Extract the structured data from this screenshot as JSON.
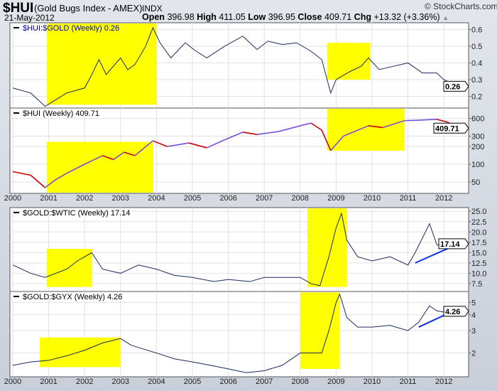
{
  "header": {
    "symbol": "$HUI",
    "name": "(Gold Bugs Index - AMEX)",
    "exchange": "INDX",
    "date": "21-May-2012",
    "brand": "© StockCharts.com",
    "open_label": "Open",
    "open": "396.98",
    "high_label": "High",
    "high": "411.05",
    "low_label": "Low",
    "low": "396.95",
    "close_label": "Close",
    "close": "409.71",
    "chg_label": "Chg",
    "chg": "+13.32 (+3.36%)"
  },
  "colors": {
    "highlight": "#ffff00",
    "line": "#1a2a5a",
    "up": "#0000ff",
    "down": "#cc0000",
    "trend": "#1030e0"
  },
  "chart_data": {
    "type": "line",
    "x_ticks": [
      "2000",
      "2001",
      "2002",
      "2003",
      "2004",
      "2005",
      "2006",
      "2007",
      "2008",
      "2009",
      "2010",
      "2011",
      "2012"
    ],
    "panels": [
      {
        "title": "$HUI:$GOLD (Weekly) 0.26",
        "last": "0.26",
        "scale": "linear",
        "ylim": [
          0.13,
          0.64
        ],
        "ticks": [
          "0.6",
          "0.5",
          "0.4",
          "0.3",
          "0.2"
        ],
        "tick_values": [
          0.6,
          0.5,
          0.4,
          0.3,
          0.2
        ],
        "highlights": [
          [
            2000.95,
            2004.0,
            0.15,
            0.64
          ],
          [
            2008.75,
            2009.95,
            0.3,
            0.52
          ]
        ],
        "points": [
          [
            2000,
            0.25
          ],
          [
            2000.5,
            0.22
          ],
          [
            2000.9,
            0.14
          ],
          [
            2001.2,
            0.18
          ],
          [
            2001.5,
            0.22
          ],
          [
            2002.0,
            0.25
          ],
          [
            2002.2,
            0.33
          ],
          [
            2002.4,
            0.42
          ],
          [
            2002.6,
            0.33
          ],
          [
            2002.8,
            0.38
          ],
          [
            2003.0,
            0.43
          ],
          [
            2003.2,
            0.36
          ],
          [
            2003.4,
            0.39
          ],
          [
            2003.7,
            0.5
          ],
          [
            2003.9,
            0.61
          ],
          [
            2004.1,
            0.52
          ],
          [
            2004.4,
            0.43
          ],
          [
            2004.8,
            0.52
          ],
          [
            2005.1,
            0.47
          ],
          [
            2005.4,
            0.43
          ],
          [
            2005.9,
            0.5
          ],
          [
            2006.4,
            0.56
          ],
          [
            2006.8,
            0.48
          ],
          [
            2007.1,
            0.53
          ],
          [
            2007.5,
            0.51
          ],
          [
            2007.9,
            0.52
          ],
          [
            2008.3,
            0.47
          ],
          [
            2008.6,
            0.42
          ],
          [
            2008.85,
            0.22
          ],
          [
            2009.0,
            0.3
          ],
          [
            2009.4,
            0.35
          ],
          [
            2009.7,
            0.38
          ],
          [
            2009.9,
            0.43
          ],
          [
            2010.2,
            0.36
          ],
          [
            2010.6,
            0.38
          ],
          [
            2011.0,
            0.4
          ],
          [
            2011.4,
            0.34
          ],
          [
            2011.8,
            0.34
          ],
          [
            2012.0,
            0.3
          ],
          [
            2012.38,
            0.26
          ]
        ]
      },
      {
        "title": "$HUI (Weekly) 409.71",
        "last": "409.71",
        "scale": "log",
        "ylim": [
          32,
          900
        ],
        "ticks": [
          "600",
          "300",
          "200",
          "100",
          "50"
        ],
        "tick_values": [
          600,
          300,
          200,
          100,
          50
        ],
        "highlights": [
          [
            2000.95,
            2003.9,
            32,
            240
          ],
          [
            2008.75,
            2010.9,
            170,
            880
          ]
        ],
        "points": [
          [
            2000,
            75
          ],
          [
            2000.5,
            65
          ],
          [
            2000.9,
            40
          ],
          [
            2001.2,
            55
          ],
          [
            2001.5,
            70
          ],
          [
            2002.0,
            100
          ],
          [
            2002.5,
            140
          ],
          [
            2002.8,
            120
          ],
          [
            2003.1,
            160
          ],
          [
            2003.4,
            140
          ],
          [
            2003.9,
            250
          ],
          [
            2004.3,
            200
          ],
          [
            2004.9,
            230
          ],
          [
            2005.4,
            190
          ],
          [
            2005.9,
            260
          ],
          [
            2006.4,
            350
          ],
          [
            2006.8,
            320
          ],
          [
            2007.4,
            360
          ],
          [
            2008.0,
            450
          ],
          [
            2008.3,
            500
          ],
          [
            2008.6,
            380
          ],
          [
            2008.85,
            170
          ],
          [
            2009.2,
            300
          ],
          [
            2009.9,
            450
          ],
          [
            2010.3,
            420
          ],
          [
            2010.9,
            550
          ],
          [
            2011.3,
            560
          ],
          [
            2011.8,
            580
          ],
          [
            2012.1,
            520
          ],
          [
            2012.38,
            410
          ]
        ]
      },
      {
        "title": "$GOLD:$WTIC (Weekly) 17.14",
        "last": "17.14",
        "scale": "linear",
        "ylim": [
          5.6,
          25.9
        ],
        "ticks": [
          "25.0",
          "22.5",
          "20.0",
          "17.5",
          "15.0",
          "12.5",
          "10.0",
          "7.5"
        ],
        "tick_values": [
          25,
          22.5,
          20,
          17.5,
          15,
          12.5,
          10,
          7.5
        ],
        "highlights": [
          [
            2000.95,
            2002.2,
            6.7,
            15.9
          ],
          [
            2008.2,
            2009.3,
            6.7,
            25.7
          ]
        ],
        "trend": [
          [
            2011.2,
            12.5
          ],
          [
            2012.5,
            17.5
          ]
        ],
        "points": [
          [
            2000,
            12
          ],
          [
            2000.5,
            10
          ],
          [
            2000.9,
            9
          ],
          [
            2001.5,
            11
          ],
          [
            2001.8,
            13
          ],
          [
            2002.2,
            15
          ],
          [
            2002.5,
            11
          ],
          [
            2003.0,
            10
          ],
          [
            2003.5,
            12
          ],
          [
            2004.0,
            11
          ],
          [
            2004.5,
            9.5
          ],
          [
            2005.0,
            9
          ],
          [
            2005.6,
            8
          ],
          [
            2006.0,
            8.5
          ],
          [
            2006.6,
            8
          ],
          [
            2007.0,
            9
          ],
          [
            2007.5,
            9
          ],
          [
            2008.0,
            9
          ],
          [
            2008.3,
            7.5
          ],
          [
            2008.55,
            7
          ],
          [
            2008.8,
            14
          ],
          [
            2009.0,
            21
          ],
          [
            2009.15,
            24.5
          ],
          [
            2009.3,
            18
          ],
          [
            2009.6,
            14
          ],
          [
            2010.0,
            13
          ],
          [
            2010.5,
            14
          ],
          [
            2011.0,
            12
          ],
          [
            2011.2,
            15
          ],
          [
            2011.6,
            22
          ],
          [
            2011.8,
            17
          ],
          [
            2012.0,
            16
          ],
          [
            2012.38,
            17.14
          ]
        ]
      },
      {
        "title": "$GOLD:$GYX (Weekly) 4.26",
        "last": "4.26",
        "scale": "log",
        "ylim": [
          1.3,
          6.1
        ],
        "ticks": [
          "5",
          "4",
          "3",
          "2"
        ],
        "tick_values": [
          5,
          4,
          3,
          2
        ],
        "highlights": [
          [
            2000.75,
            2003.0,
            1.55,
            2.65
          ],
          [
            2008.0,
            2009.1,
            1.5,
            6.0
          ]
        ],
        "trend": [
          [
            2011.3,
            3.2
          ],
          [
            2012.5,
            4.6
          ]
        ],
        "points": [
          [
            2000,
            1.6
          ],
          [
            2000.5,
            1.7
          ],
          [
            2001.0,
            1.75
          ],
          [
            2001.5,
            1.9
          ],
          [
            2002.0,
            2.1
          ],
          [
            2002.5,
            2.4
          ],
          [
            2003.0,
            2.6
          ],
          [
            2003.3,
            2.3
          ],
          [
            2004.0,
            2.0
          ],
          [
            2004.5,
            1.8
          ],
          [
            2005.0,
            1.7
          ],
          [
            2005.5,
            1.6
          ],
          [
            2006.0,
            1.5
          ],
          [
            2006.5,
            1.4
          ],
          [
            2007.0,
            1.45
          ],
          [
            2007.5,
            1.6
          ],
          [
            2008.0,
            2.0
          ],
          [
            2008.3,
            2.0
          ],
          [
            2008.6,
            2.0
          ],
          [
            2008.8,
            3.0
          ],
          [
            2009.0,
            5.0
          ],
          [
            2009.1,
            5.8
          ],
          [
            2009.3,
            3.8
          ],
          [
            2009.6,
            3.2
          ],
          [
            2010.0,
            3.2
          ],
          [
            2010.5,
            3.3
          ],
          [
            2011.0,
            3.0
          ],
          [
            2011.3,
            3.5
          ],
          [
            2011.6,
            4.7
          ],
          [
            2011.8,
            4.3
          ],
          [
            2012.0,
            4.2
          ],
          [
            2012.38,
            4.26
          ]
        ]
      }
    ]
  }
}
